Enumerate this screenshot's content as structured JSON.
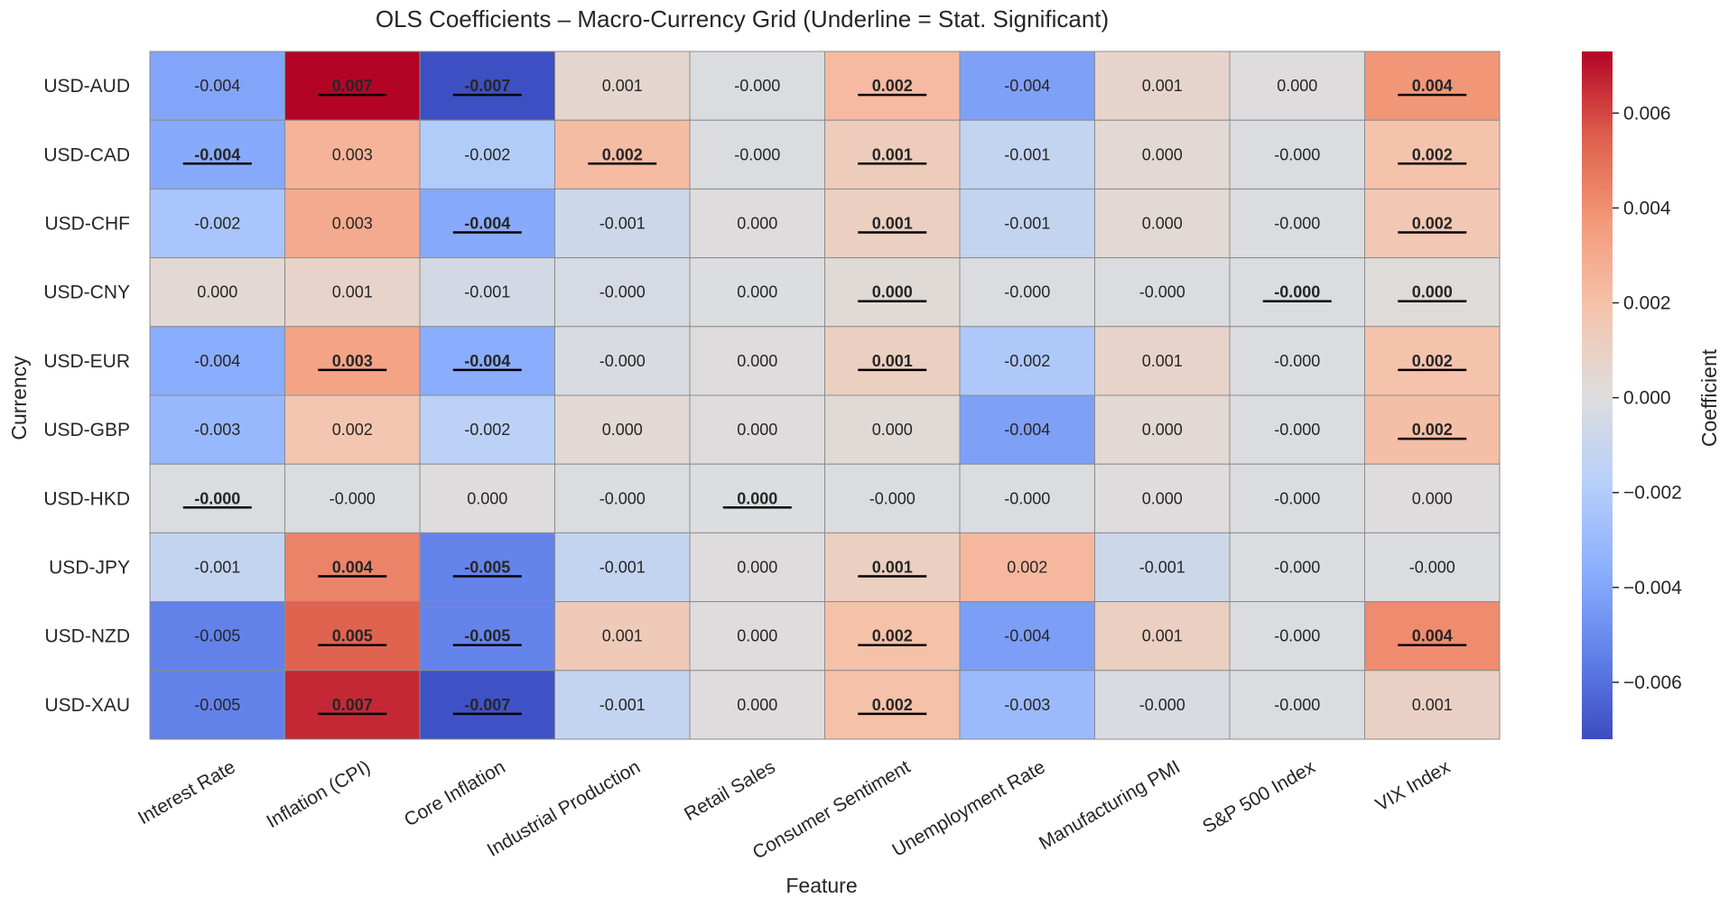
{
  "chart_data": {
    "type": "heatmap",
    "title": "OLS Coefficients – Macro-Currency Grid (Underline = Stat. Significant)",
    "xlabel": "Feature",
    "ylabel": "Currency",
    "colorbar_label": "Coefficient",
    "colormap": "coolwarm",
    "vmin": -0.0072,
    "vmax": 0.0073,
    "colorbar_ticks": [
      "−0.006",
      "−0.004",
      "−0.002",
      "0.000",
      "0.002",
      "0.004",
      "0.006"
    ],
    "colorbar_tick_values": [
      -0.006,
      -0.004,
      -0.002,
      0.0,
      0.002,
      0.004,
      0.006
    ],
    "grid": true,
    "columns": [
      "Interest Rate",
      "Inflation (CPI)",
      "Core Inflation",
      "Industrial Production",
      "Retail Sales",
      "Consumer Sentiment",
      "Unemployment Rate",
      "Manufacturing PMI",
      "S&P 500 Index",
      "VIX Index"
    ],
    "rows": [
      "USD-AUD",
      "USD-CAD",
      "USD-CHF",
      "USD-CNY",
      "USD-EUR",
      "USD-GBP",
      "USD-HKD",
      "USD-JPY",
      "USD-NZD",
      "USD-XAU"
    ],
    "labels": [
      [
        "-0.004",
        "0.007",
        "-0.007",
        "0.001",
        "-0.000",
        "0.002",
        "-0.004",
        "0.001",
        "0.000",
        "0.004"
      ],
      [
        "-0.004",
        "0.003",
        "-0.002",
        "0.002",
        "-0.000",
        "0.001",
        "-0.001",
        "0.000",
        "-0.000",
        "0.002"
      ],
      [
        "-0.002",
        "0.003",
        "-0.004",
        "-0.001",
        "0.000",
        "0.001",
        "-0.001",
        "0.000",
        "-0.000",
        "0.002"
      ],
      [
        "0.000",
        "0.001",
        "-0.001",
        "-0.000",
        "0.000",
        "0.000",
        "-0.000",
        "-0.000",
        "-0.000",
        "0.000"
      ],
      [
        "-0.004",
        "0.003",
        "-0.004",
        "-0.000",
        "0.000",
        "0.001",
        "-0.002",
        "0.001",
        "-0.000",
        "0.002"
      ],
      [
        "-0.003",
        "0.002",
        "-0.002",
        "0.000",
        "0.000",
        "0.000",
        "-0.004",
        "0.000",
        "-0.000",
        "0.002"
      ],
      [
        "-0.000",
        "-0.000",
        "0.000",
        "-0.000",
        "0.000",
        "-0.000",
        "-0.000",
        "0.000",
        "-0.000",
        "0.000"
      ],
      [
        "-0.001",
        "0.004",
        "-0.005",
        "-0.001",
        "0.000",
        "0.001",
        "0.002",
        "-0.001",
        "-0.000",
        "-0.000"
      ],
      [
        "-0.005",
        "0.005",
        "-0.005",
        "0.001",
        "0.000",
        "0.002",
        "-0.004",
        "0.001",
        "-0.000",
        "0.004"
      ],
      [
        "-0.005",
        "0.007",
        "-0.007",
        "-0.001",
        "0.000",
        "0.002",
        "-0.003",
        "-0.000",
        "-0.000",
        "0.001"
      ]
    ],
    "values": [
      [
        -0.004,
        0.0073,
        -0.0071,
        0.0006,
        -0.0001,
        0.0023,
        -0.0042,
        0.0007,
        0.0001,
        0.0038
      ],
      [
        -0.0038,
        0.0026,
        -0.002,
        0.0022,
        -0.0001,
        0.0013,
        -0.0012,
        0.0004,
        -0.0001,
        0.0019
      ],
      [
        -0.0024,
        0.003,
        -0.0038,
        -0.0008,
        0.0001,
        0.0011,
        -0.0012,
        0.0004,
        -0.0001,
        0.0016
      ],
      [
        0.0004,
        0.0008,
        -0.0005,
        -0.0003,
        0.0,
        0.0003,
        -0.0001,
        -0.0001,
        -0.0001,
        0.0002
      ],
      [
        -0.0037,
        0.0033,
        -0.0037,
        -0.0002,
        0.0001,
        0.0011,
        -0.0022,
        0.0008,
        -0.0001,
        0.0019
      ],
      [
        -0.0031,
        0.0017,
        -0.0016,
        0.0004,
        0.0001,
        0.0003,
        -0.0042,
        0.0004,
        -0.0001,
        0.0021
      ],
      [
        -0.0001,
        -0.0001,
        0.0001,
        -0.0001,
        0.0,
        -0.0001,
        -0.0001,
        0.0001,
        -0.0001,
        0.0001
      ],
      [
        -0.0012,
        0.0044,
        -0.0053,
        -0.0012,
        0.0001,
        0.0011,
        0.0024,
        -0.0008,
        -0.0001,
        -0.0001
      ],
      [
        -0.0054,
        0.0054,
        -0.0053,
        0.0014,
        0.0001,
        0.002,
        -0.0043,
        0.0011,
        -0.0001,
        0.0041
      ],
      [
        -0.0054,
        0.0066,
        -0.007,
        -0.0012,
        0.0001,
        0.002,
        -0.003,
        -0.0002,
        -0.0001,
        0.001
      ]
    ],
    "significant": [
      [
        0,
        1,
        1,
        0,
        0,
        1,
        0,
        0,
        0,
        1
      ],
      [
        1,
        0,
        0,
        1,
        0,
        1,
        0,
        0,
        0,
        1
      ],
      [
        0,
        0,
        1,
        0,
        0,
        1,
        0,
        0,
        0,
        1
      ],
      [
        0,
        0,
        0,
        0,
        0,
        1,
        0,
        0,
        1,
        1
      ],
      [
        0,
        1,
        1,
        0,
        0,
        1,
        0,
        0,
        0,
        1
      ],
      [
        0,
        0,
        0,
        0,
        0,
        0,
        0,
        0,
        0,
        1
      ],
      [
        1,
        0,
        0,
        0,
        1,
        0,
        0,
        0,
        0,
        0
      ],
      [
        0,
        1,
        1,
        0,
        0,
        1,
        0,
        0,
        0,
        0
      ],
      [
        0,
        1,
        1,
        0,
        0,
        1,
        0,
        0,
        0,
        1
      ],
      [
        0,
        1,
        1,
        0,
        0,
        1,
        0,
        0,
        0,
        0
      ]
    ]
  }
}
